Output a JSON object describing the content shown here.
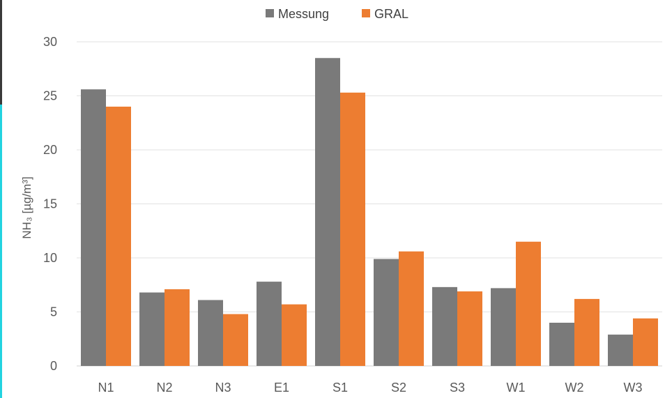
{
  "chart_data": {
    "type": "bar",
    "categories": [
      "N1",
      "N2",
      "N3",
      "E1",
      "S1",
      "S2",
      "S3",
      "W1",
      "W2",
      "W3"
    ],
    "series": [
      {
        "name": "Messung",
        "color": "#7a7a7a",
        "values": [
          25.6,
          6.8,
          6.1,
          7.8,
          28.5,
          9.9,
          7.3,
          7.2,
          4.0,
          2.9
        ]
      },
      {
        "name": "GRAL",
        "color": "#ed7d31",
        "values": [
          24.0,
          7.1,
          4.8,
          5.7,
          25.3,
          10.6,
          6.9,
          11.5,
          6.2,
          4.4
        ]
      }
    ],
    "ylabel": "NH₃ [µg/m³]",
    "ylim": [
      0,
      30
    ],
    "yticks": [
      0,
      5,
      10,
      15,
      20,
      25,
      30
    ],
    "grid": true,
    "legend_position": "top"
  }
}
